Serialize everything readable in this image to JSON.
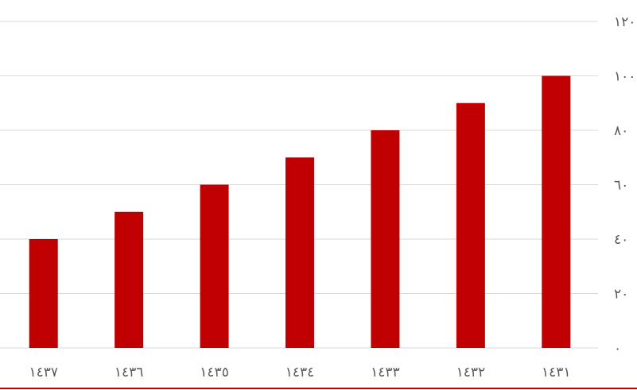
{
  "chart_data": {
    "type": "bar",
    "categories": [
      "١٤٣٧",
      "١٤٣٦",
      "١٤٣٥",
      "١٤٣٤",
      "١٤٣٣",
      "١٤٣٢",
      "١٤٣١"
    ],
    "values": [
      40,
      50,
      60,
      70,
      80,
      90,
      100
    ],
    "title": "",
    "xlabel": "",
    "ylabel": "",
    "ylim": [
      0,
      120
    ],
    "yticks": [
      0,
      20,
      40,
      60,
      80,
      100,
      120
    ],
    "ytick_labels": [
      "٠",
      "٢٠",
      "٤٠",
      "٦٠",
      "٨٠",
      "١٠٠",
      "١٢٠"
    ],
    "y_axis_position": "right",
    "grid": true,
    "legend": "none",
    "bar_color": "#c00000",
    "grid_color": "#d9d9d9",
    "text_color": "#595959",
    "bottom_rule_color": "#c00000"
  }
}
